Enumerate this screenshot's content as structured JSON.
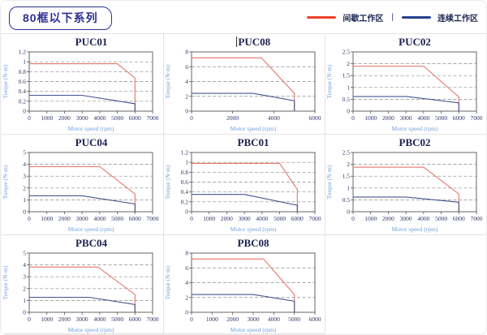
{
  "header": {
    "badge": "80框以下系列"
  },
  "legend": {
    "separator": "|",
    "items": [
      {
        "label": "间歇工作区",
        "color": "#e8432a"
      },
      {
        "label": "连续工作区",
        "color": "#27418b"
      }
    ]
  },
  "colors": {
    "line_red": "#e4756b",
    "line_blue": "#47548f",
    "grid_line": "#8a8a8a",
    "axis_frame": "#555555"
  },
  "chart_data": [
    {
      "type": "line",
      "title": "PUC01",
      "cursor": false,
      "xlabel": "Motor speed (rpm)",
      "ylabel": "Torque (N·m)",
      "xlim": [
        0,
        7000
      ],
      "xticks": [
        0,
        1000,
        2000,
        3000,
        4000,
        5000,
        6000,
        7000
      ],
      "ylim": [
        0,
        1.2
      ],
      "yticks": [
        0,
        0.2,
        0.4,
        0.6,
        0.8,
        1,
        1.2
      ],
      "series": [
        {
          "name": "间歇工作区",
          "color": "red",
          "points": [
            [
              0,
              0.96
            ],
            [
              5000,
              0.96
            ],
            [
              6000,
              0.67
            ],
            [
              6000,
              0
            ]
          ]
        },
        {
          "name": "连续工作区",
          "color": "blue",
          "points": [
            [
              0,
              0.32
            ],
            [
              3000,
              0.32
            ],
            [
              6000,
              0.15
            ],
            [
              6000,
              0
            ]
          ]
        }
      ]
    },
    {
      "type": "line",
      "title": "PUC08",
      "cursor": true,
      "xlabel": "Motor speed (rpm)",
      "ylabel": "Torque (N·m)",
      "xlim": [
        0,
        6000
      ],
      "xticks": [
        0,
        2000,
        4000,
        6000
      ],
      "ylim": [
        0,
        8
      ],
      "yticks": [
        0,
        2,
        4,
        6,
        8
      ],
      "series": [
        {
          "name": "间歇工作区",
          "color": "red",
          "points": [
            [
              0,
              7.2
            ],
            [
              3400,
              7.2
            ],
            [
              5000,
              2.4
            ],
            [
              5000,
              0
            ]
          ]
        },
        {
          "name": "连续工作区",
          "color": "blue",
          "points": [
            [
              0,
              2.4
            ],
            [
              3000,
              2.4
            ],
            [
              5000,
              1.4
            ],
            [
              5000,
              0
            ]
          ]
        }
      ]
    },
    {
      "type": "line",
      "title": "PUC02",
      "cursor": false,
      "xlabel": "Motor speed (rpm)",
      "ylabel": "Torque (N·m)",
      "xlim": [
        0,
        7000
      ],
      "xticks": [
        0,
        1000,
        2000,
        3000,
        4000,
        5000,
        6000,
        7000
      ],
      "ylim": [
        0,
        2.5
      ],
      "yticks": [
        0,
        0.5,
        1,
        1.5,
        2,
        2.5
      ],
      "series": [
        {
          "name": "间歇工作区",
          "color": "red",
          "points": [
            [
              0,
              1.9
            ],
            [
              4000,
              1.9
            ],
            [
              6000,
              0.6
            ],
            [
              6000,
              0
            ]
          ]
        },
        {
          "name": "连续工作区",
          "color": "blue",
          "points": [
            [
              0,
              0.62
            ],
            [
              3000,
              0.62
            ],
            [
              6000,
              0.35
            ],
            [
              6000,
              0
            ]
          ]
        }
      ]
    },
    {
      "type": "line",
      "title": "PUC04",
      "cursor": false,
      "xlabel": "Motor speed (rpm)",
      "ylabel": "Torque (N·m)",
      "xlim": [
        0,
        7000
      ],
      "xticks": [
        0,
        1000,
        2000,
        3000,
        4000,
        5000,
        6000,
        7000
      ],
      "ylim": [
        0,
        5
      ],
      "yticks": [
        0,
        1,
        2,
        3,
        4,
        5
      ],
      "series": [
        {
          "name": "间歇工作区",
          "color": "red",
          "points": [
            [
              0,
              3.8
            ],
            [
              4000,
              3.8
            ],
            [
              6000,
              1.5
            ],
            [
              6000,
              0
            ]
          ]
        },
        {
          "name": "连续工作区",
          "color": "blue",
          "points": [
            [
              0,
              1.35
            ],
            [
              3000,
              1.35
            ],
            [
              6000,
              0.65
            ],
            [
              6000,
              0
            ]
          ]
        }
      ]
    },
    {
      "type": "line",
      "title": "PBC01",
      "cursor": false,
      "xlabel": "Motor speed (rpm)",
      "ylabel": "Torque (N·m)",
      "xlim": [
        0,
        7000
      ],
      "xticks": [
        0,
        1000,
        2000,
        3000,
        4000,
        5000,
        6000,
        7000
      ],
      "ylim": [
        0,
        1.2
      ],
      "yticks": [
        0,
        0.2,
        0.4,
        0.6,
        0.8,
        1,
        1.2
      ],
      "series": [
        {
          "name": "间歇工作区",
          "color": "red",
          "points": [
            [
              0,
              0.98
            ],
            [
              5000,
              0.98
            ],
            [
              6000,
              0.45
            ],
            [
              6000,
              0
            ]
          ]
        },
        {
          "name": "连续工作区",
          "color": "blue",
          "points": [
            [
              0,
              0.35
            ],
            [
              3000,
              0.35
            ],
            [
              6000,
              0.13
            ],
            [
              6000,
              0
            ]
          ]
        }
      ]
    },
    {
      "type": "line",
      "title": "PBC02",
      "cursor": false,
      "xlabel": "Motor speed (rpm)",
      "ylabel": "Torque (N·m)",
      "xlim": [
        0,
        7000
      ],
      "xticks": [
        0,
        1000,
        2000,
        3000,
        4000,
        5000,
        6000,
        7000
      ],
      "ylim": [
        0,
        2.5
      ],
      "yticks": [
        0,
        0.5,
        1,
        1.5,
        2,
        2.5
      ],
      "series": [
        {
          "name": "间歇工作区",
          "color": "red",
          "points": [
            [
              0,
              1.88
            ],
            [
              4000,
              1.88
            ],
            [
              6000,
              0.75
            ],
            [
              6000,
              0
            ]
          ]
        },
        {
          "name": "连续工作区",
          "color": "blue",
          "points": [
            [
              0,
              0.62
            ],
            [
              3000,
              0.62
            ],
            [
              6000,
              0.4
            ],
            [
              6000,
              0
            ]
          ]
        }
      ]
    },
    {
      "type": "line",
      "title": "PBC04",
      "cursor": false,
      "xlabel": "Motor speed (rpm)",
      "ylabel": "Torque (N·m)",
      "xlim": [
        0,
        7000
      ],
      "xticks": [
        0,
        1000,
        2000,
        3000,
        4000,
        5000,
        6000,
        7000
      ],
      "ylim": [
        0,
        5
      ],
      "yticks": [
        0,
        1,
        2,
        3,
        4,
        5
      ],
      "series": [
        {
          "name": "间歇工作区",
          "color": "red",
          "points": [
            [
              0,
              3.82
            ],
            [
              3900,
              3.82
            ],
            [
              6000,
              1.5
            ],
            [
              6000,
              0
            ]
          ]
        },
        {
          "name": "连续工作区",
          "color": "blue",
          "points": [
            [
              0,
              1.27
            ],
            [
              3400,
              1.27
            ],
            [
              6000,
              0.65
            ],
            [
              6000,
              0
            ]
          ]
        }
      ]
    },
    {
      "type": "line",
      "title": "PBC08",
      "cursor": false,
      "xlabel": "Motor speed (rpm)",
      "ylabel": "Torque (N·m)",
      "xlim": [
        0,
        6000
      ],
      "xticks": [
        0,
        1000,
        2000,
        3000,
        4000,
        5000,
        6000
      ],
      "ylim": [
        0,
        8
      ],
      "yticks": [
        0,
        2,
        4,
        6,
        8
      ],
      "series": [
        {
          "name": "间歇工作区",
          "color": "red",
          "points": [
            [
              0,
              7.2
            ],
            [
              3500,
              7.2
            ],
            [
              5000,
              2.4
            ],
            [
              5000,
              0
            ]
          ]
        },
        {
          "name": "连续工作区",
          "color": "blue",
          "points": [
            [
              0,
              2.4
            ],
            [
              3000,
              2.4
            ],
            [
              5000,
              1.5
            ],
            [
              5000,
              0
            ]
          ]
        }
      ]
    }
  ]
}
